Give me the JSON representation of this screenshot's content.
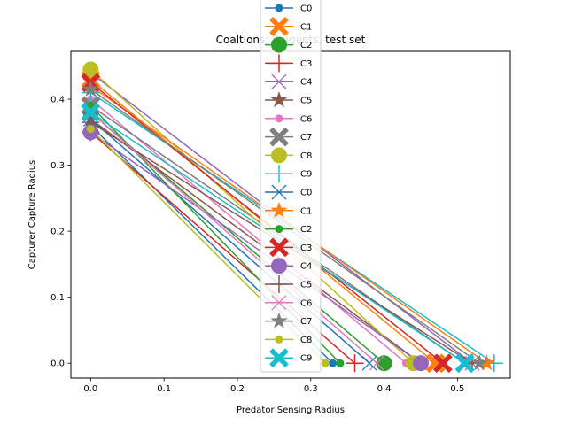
{
  "chart_data": {
    "type": "line",
    "title": "Coaltions: 5 agents, test set",
    "xlabel": "Predator Sensing Radius",
    "ylabel": "Capturer Capture Radius",
    "xlim": [
      -0.027,
      0.572
    ],
    "ylim": [
      -0.0225,
      0.4725
    ],
    "xticks": [
      0.0,
      0.1,
      0.2,
      0.3,
      0.4,
      0.5
    ],
    "xtick_labels": [
      "0.0",
      "0.1",
      "0.2",
      "0.3",
      "0.4",
      "0.5"
    ],
    "yticks": [
      0.0,
      0.1,
      0.2,
      0.3,
      0.4
    ],
    "ytick_labels": [
      "0.0",
      "0.1",
      "0.2",
      "0.3",
      "0.4"
    ],
    "grid": false,
    "legend_position": "upper center",
    "series": [
      {
        "name": "C0",
        "color": "#1f77b4",
        "marker": "circle",
        "x": [
          0.0,
          0.33
        ],
        "y": [
          0.36,
          0.0
        ]
      },
      {
        "name": "C1",
        "color": "#ff7f0e",
        "marker": "x-thick",
        "x": [
          0.0,
          0.47
        ],
        "y": [
          0.43,
          0.0
        ]
      },
      {
        "name": "C2",
        "color": "#2ca02c",
        "marker": "circle-large",
        "x": [
          0.0,
          0.4
        ],
        "y": [
          0.38,
          0.0
        ]
      },
      {
        "name": "C3",
        "color": "#d62728",
        "marker": "plus",
        "x": [
          0.0,
          0.36
        ],
        "y": [
          0.35,
          0.0
        ]
      },
      {
        "name": "C4",
        "color": "#9467bd",
        "marker": "x",
        "x": [
          0.0,
          0.52
        ],
        "y": [
          0.44,
          0.0
        ]
      },
      {
        "name": "C5",
        "color": "#8c564b",
        "marker": "star",
        "x": [
          0.0,
          0.45
        ],
        "y": [
          0.37,
          0.0
        ]
      },
      {
        "name": "C6",
        "color": "#e377c2",
        "marker": "circle",
        "x": [
          0.0,
          0.43
        ],
        "y": [
          0.4,
          0.0
        ]
      },
      {
        "name": "C7",
        "color": "#7f7f7f",
        "marker": "x-thick",
        "x": [
          0.0,
          0.51
        ],
        "y": [
          0.39,
          0.0
        ]
      },
      {
        "name": "C8",
        "color": "#bcbd22",
        "marker": "circle-large",
        "x": [
          0.0,
          0.44
        ],
        "y": [
          0.445,
          0.0
        ]
      },
      {
        "name": "C9",
        "color": "#17becf",
        "marker": "plus",
        "x": [
          0.0,
          0.55
        ],
        "y": [
          0.41,
          0.0
        ]
      },
      {
        "name": "C0",
        "color": "#1f77b4",
        "marker": "x",
        "x": [
          0.0,
          0.38
        ],
        "y": [
          0.37,
          0.0
        ]
      },
      {
        "name": "C1",
        "color": "#ff7f0e",
        "marker": "star",
        "x": [
          0.0,
          0.54
        ],
        "y": [
          0.42,
          0.0
        ]
      },
      {
        "name": "C2",
        "color": "#2ca02c",
        "marker": "circle",
        "x": [
          0.0,
          0.34
        ],
        "y": [
          0.39,
          0.0
        ]
      },
      {
        "name": "C3",
        "color": "#d62728",
        "marker": "x-thick",
        "x": [
          0.0,
          0.48
        ],
        "y": [
          0.425,
          0.0
        ]
      },
      {
        "name": "C4",
        "color": "#9467bd",
        "marker": "circle-large",
        "x": [
          0.0,
          0.45
        ],
        "y": [
          0.35,
          0.0
        ]
      },
      {
        "name": "C5",
        "color": "#8c564b",
        "marker": "plus",
        "x": [
          0.0,
          0.52
        ],
        "y": [
          0.365,
          0.0
        ]
      },
      {
        "name": "C6",
        "color": "#e377c2",
        "marker": "x",
        "x": [
          0.0,
          0.39
        ],
        "y": [
          0.38,
          0.0
        ]
      },
      {
        "name": "C7",
        "color": "#7f7f7f",
        "marker": "star",
        "x": [
          0.0,
          0.53
        ],
        "y": [
          0.415,
          0.0
        ]
      },
      {
        "name": "C8",
        "color": "#bcbd22",
        "marker": "circle",
        "x": [
          0.0,
          0.32
        ],
        "y": [
          0.355,
          0.0
        ]
      },
      {
        "name": "C9",
        "color": "#17becf",
        "marker": "x-thick",
        "x": [
          0.0,
          0.51
        ],
        "y": [
          0.38,
          0.0
        ]
      }
    ]
  }
}
